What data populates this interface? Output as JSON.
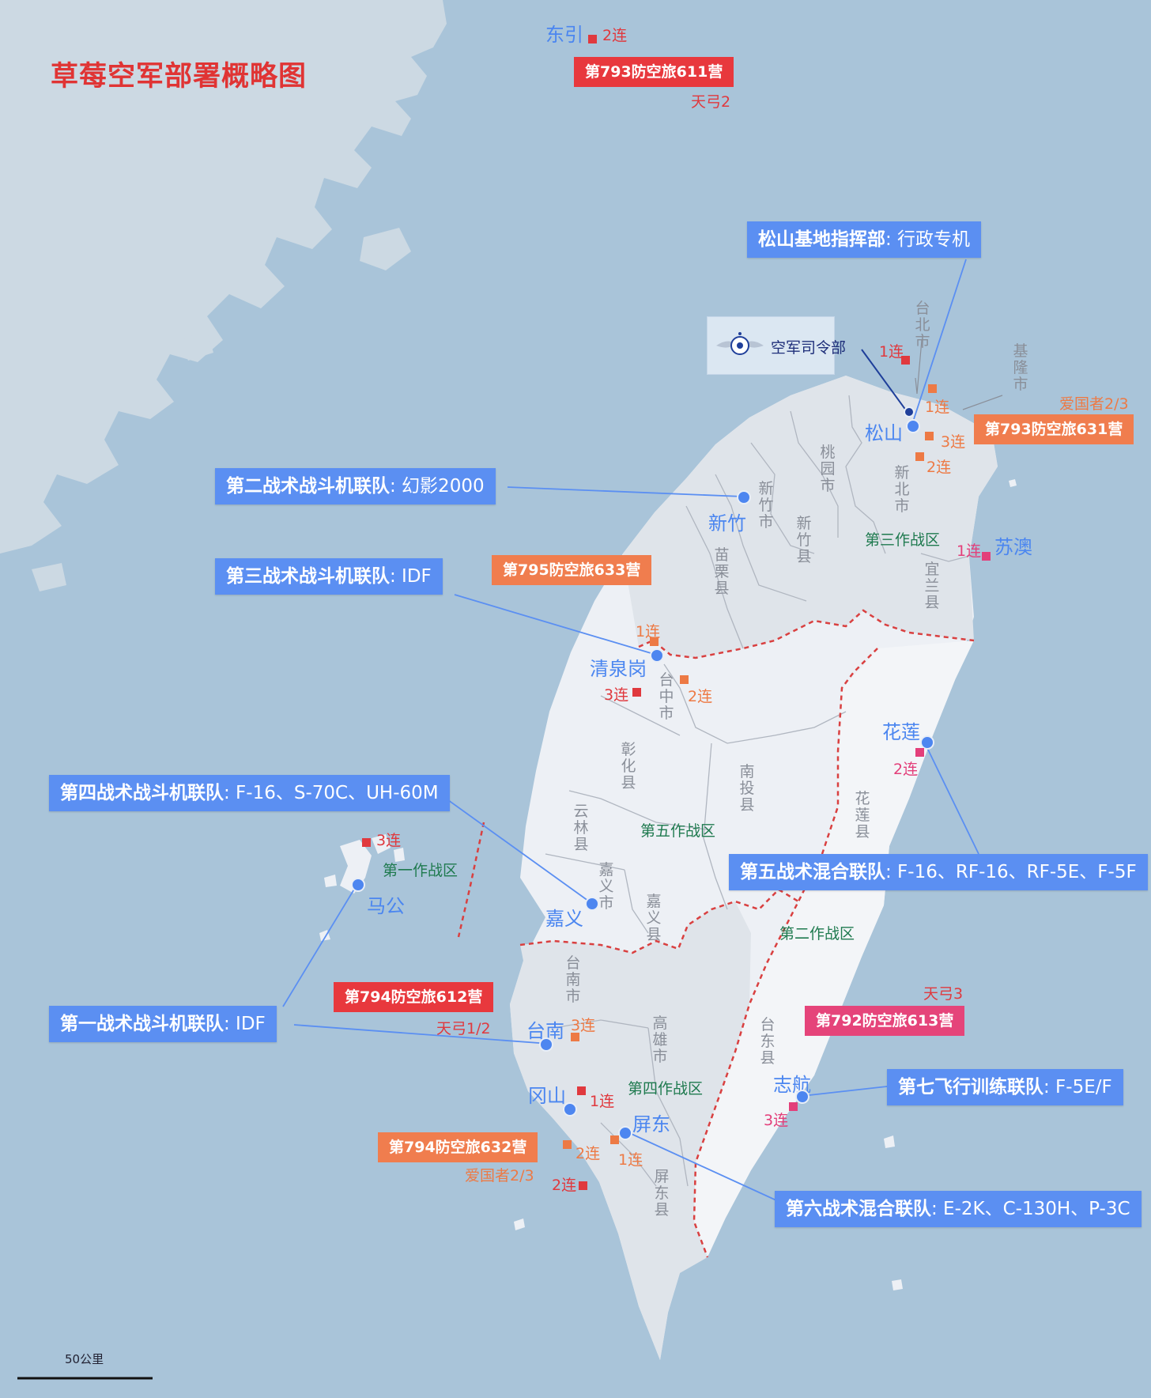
{
  "title": "草莓空军部署概略图",
  "hq": {
    "label": "空军司令部",
    "icon": "air-force-emblem-icon"
  },
  "units": {
    "songshan_cmd": {
      "name": "松山基地指挥部",
      "aircraft": ": 行政专机"
    },
    "wing2": {
      "name": "第二战术战斗机联队",
      "aircraft": ": 幻影2000"
    },
    "wing3": {
      "name": "第三战术战斗机联队",
      "aircraft": ": IDF"
    },
    "wing4": {
      "name": "第四战术战斗机联队",
      "aircraft": ": F-16、S-70C、UH-60M"
    },
    "wing1": {
      "name": "第一战术战斗机联队",
      "aircraft": ": IDF"
    },
    "wing5": {
      "name": "第五战术混合联队",
      "aircraft": ": F-16、RF-16、RF-5E、F-5F"
    },
    "wing7": {
      "name": "第七飞行训练联队",
      "aircraft": ": F-5E/F"
    },
    "wing6": {
      "name": "第六战术混合联队",
      "aircraft": ": E-2K、C-130H、P-3C"
    }
  },
  "brigades": {
    "b793_611": "第793防空旅611营",
    "b793_631": "第793防空旅631营",
    "b795_633": "第795防空旅633营",
    "b794_612": "第794防空旅612营",
    "b792_613": "第792防空旅613营",
    "b794_632": "第794防空旅632营"
  },
  "missiles": {
    "tg2": "天弓2",
    "patriot_north": "爱国者2/3",
    "tg12": "天弓1/2",
    "tg3": "天弓3",
    "patriot_south": "爱国者2/3"
  },
  "cities": {
    "dongyin": "东引",
    "songshan": "松山",
    "hsinchu": "新竹",
    "suao": "苏澳",
    "ccK": "清泉岗",
    "hualien": "花莲",
    "magong": "马公",
    "chiayi": "嘉义",
    "tainan": "台南",
    "gangshan": "冈山",
    "pingtung": "屏东",
    "zhihang": "志航"
  },
  "counties": {
    "taipei_city": "台北市",
    "keelung_city": "基隆市",
    "taoyuan_city": "桃园市",
    "newtaipei_city": "新北市",
    "hsinchu_city": "新竹市",
    "hsinchu_county": "新竹县",
    "miaoli_county": "苗栗县",
    "yilan_county": "宜兰县",
    "taichung_city": "台中市",
    "changhua_county": "彰化县",
    "nantou_county": "南投县",
    "yunlin_county": "云林县",
    "chiayi_city": "嘉义市",
    "chiayi_county": "嘉义县",
    "hualien_county": "花莲县",
    "tainan_city": "台南市",
    "kaohsiung_city": "高雄市",
    "taitung_county": "台东县",
    "pingtung_county": "屏东县"
  },
  "zones": {
    "z1": "第一作战区",
    "z2": "第二作战区",
    "z3": "第三作战区",
    "z4": "第四作战区",
    "z5": "第五作战区"
  },
  "companies": {
    "dongyin_2": "2连",
    "taipei_1": "1连",
    "keelung_1": "1连",
    "ne_3": "3连",
    "ne_2": "2连",
    "suao_1": "1连",
    "ccK_1": "1连",
    "ccK_2": "2连",
    "ccK_3": "3连",
    "hualien_2": "2连",
    "magong_3": "3连",
    "tainan_3": "3连",
    "gangshan_1": "1连",
    "gangshan_2": "2连",
    "pingtung_1": "1连",
    "south_2": "2连",
    "zhihang_3": "3连"
  },
  "scale": {
    "label": "50公里"
  },
  "colors": {
    "sea": "#a9c4d9",
    "mainland": "#ccd9e3",
    "island_north": "#dfe4ea",
    "island_central": "#edf0f5",
    "island_east": "#f3f5f8",
    "unit_blue": "#5b8ff2",
    "brigade_red": "#e8383d",
    "brigade_orange": "#f07d4e",
    "brigade_pink": "#e5447a",
    "zone_border": "#d94040"
  }
}
